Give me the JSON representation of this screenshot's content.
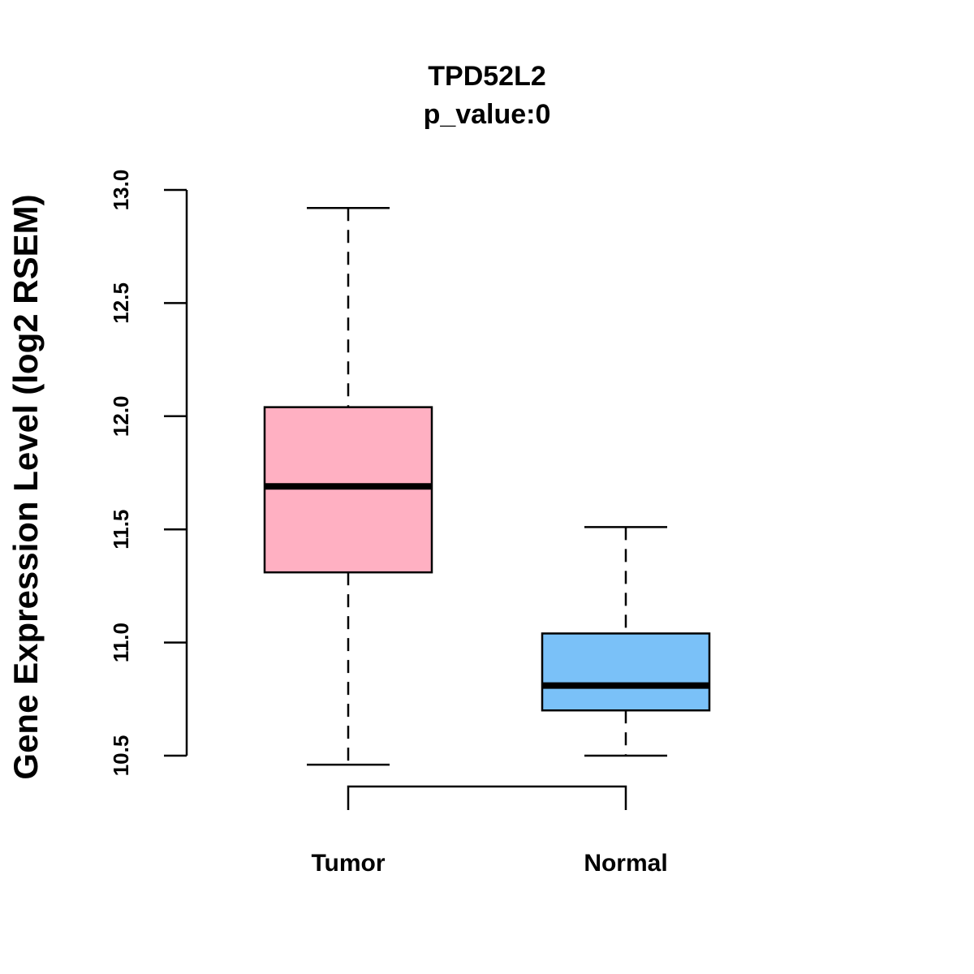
{
  "chart_data": {
    "type": "boxplot",
    "title": "TPD52L2",
    "subtitle": "p_value:0",
    "xlabel": "",
    "ylabel": "Gene Expression Level (log2 RSEM)",
    "ylim": [
      10.5,
      13.0
    ],
    "yticks": [
      "10.5",
      "11.0",
      "11.5",
      "12.0",
      "12.5",
      "13.0"
    ],
    "categories": [
      "Tumor",
      "Normal"
    ],
    "series": [
      {
        "name": "Tumor",
        "color": "#FFB0C2",
        "whisker_low": 10.46,
        "q1": 11.31,
        "median": 11.69,
        "q3": 12.04,
        "whisker_high": 12.92
      },
      {
        "name": "Normal",
        "color": "#7AC1F8",
        "whisker_low": 10.5,
        "q1": 10.7,
        "median": 10.81,
        "q3": 11.04,
        "whisker_high": 11.51
      }
    ],
    "comparison_bracket": {
      "between": [
        "Tumor",
        "Normal"
      ],
      "label": ""
    },
    "grid": false,
    "legend": "none"
  }
}
